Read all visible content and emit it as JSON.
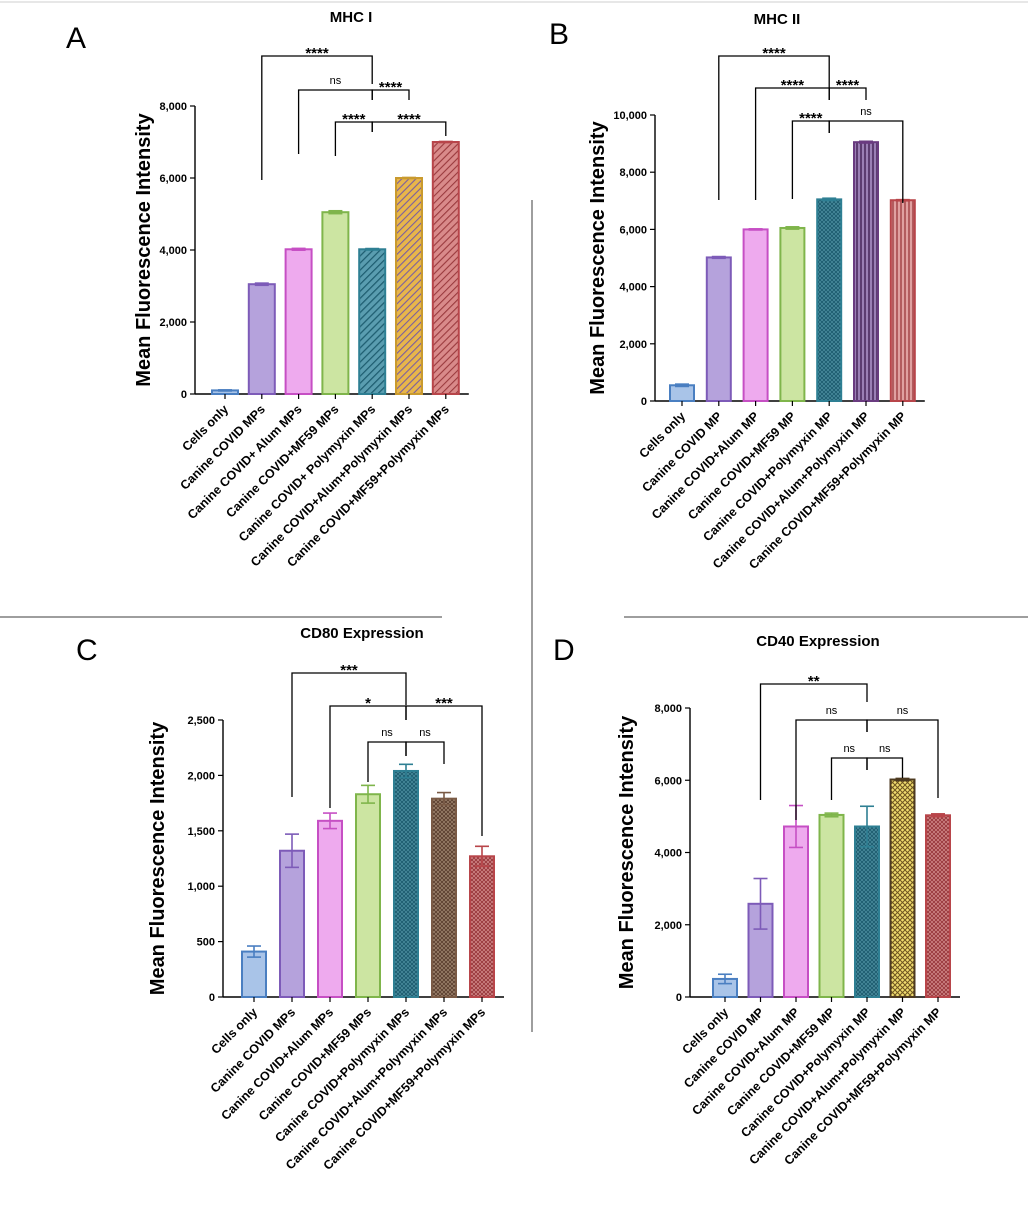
{
  "figure": {
    "dividers": {
      "color": "#9e9e9e"
    }
  },
  "chart_data": [
    {
      "panel": "A",
      "type": "bar",
      "title": "MHC I",
      "ylabel": "Mean Fluorescence Intensity",
      "ylim": [
        0,
        8000
      ],
      "yticks": [
        0,
        2000,
        4000,
        6000,
        8000
      ],
      "ytick_labels": [
        "0",
        "2,000",
        "4,000",
        "6,000",
        "8,000"
      ],
      "categories": [
        "Cells only",
        "Canine COVID MPs",
        "Canine COVID+ Alum MPs",
        "Canine COVID+MF59 MPs",
        "Canine COVID+ Polymyxin MPs",
        "Canine COVID+Alum+Polymyxin MPs",
        "Canine COVID+MF59+Polymyxin MPs"
      ],
      "values": [
        100,
        3050,
        4020,
        5050,
        4020,
        6000,
        7000
      ],
      "errors": [
        15,
        30,
        25,
        40,
        20,
        15,
        15
      ],
      "colors": [
        "#4a7fc1",
        "#7d5bb8",
        "#c64fc4",
        "#7fb54b",
        "#2e7f93",
        "#c99a2e",
        "#b8454a"
      ],
      "fills": [
        "#a9c4e8",
        "#b5a2dc",
        "#eeaaee",
        "#cce5a2",
        "#2e7f93",
        "#c99a2e",
        "#b8454a"
      ],
      "patterns": [
        "solid",
        "solid",
        "solid",
        "solid",
        "diag-blue",
        "diag-gold",
        "diag-red"
      ],
      "comparisons": [
        {
          "from": 1,
          "to": 4,
          "label": "****"
        },
        {
          "from": 2,
          "to": 4,
          "label": "ns"
        },
        {
          "from": 4,
          "to": 5,
          "label": "****"
        },
        {
          "from": 3,
          "to": 4,
          "label": "****"
        },
        {
          "from": 4,
          "to": 6,
          "label": "****"
        }
      ]
    },
    {
      "panel": "B",
      "type": "bar",
      "title": "MHC II",
      "ylabel": "Mean Fluorescence Intensity",
      "ylim": [
        0,
        10000
      ],
      "yticks": [
        0,
        2000,
        4000,
        6000,
        8000,
        10000
      ],
      "ytick_labels": [
        "0",
        "2,000",
        "4,000",
        "6,000",
        "8,000",
        "10,000"
      ],
      "categories": [
        "Cells only",
        "Canine COVID MP",
        "Canine COVID+Alum MP",
        "Canine COVID+MF59 MP",
        "Canine COVID+Polymyxin MP",
        "Canine COVID+Alum+Polymyxin MP",
        "Canine COVID+MF59+Polymyxin MP"
      ],
      "values": [
        550,
        5020,
        6000,
        6050,
        7050,
        9050,
        7020
      ],
      "errors": [
        40,
        30,
        20,
        40,
        40,
        30,
        20
      ],
      "colors": [
        "#4a7fc1",
        "#7d5bb8",
        "#c64fc4",
        "#7fb54b",
        "#2e7f93",
        "#6a3b80",
        "#b8454a"
      ],
      "fills": [
        "#a9c4e8",
        "#b5a2dc",
        "#eeaaee",
        "#cce5a2",
        "#2e7f93",
        "#6a3b80",
        "#b8454a"
      ],
      "patterns": [
        "solid",
        "solid",
        "solid",
        "solid",
        "cross-blue",
        "vert-purple",
        "vert-red"
      ],
      "comparisons": [
        {
          "from": 1,
          "to": 4,
          "label": "****"
        },
        {
          "from": 2,
          "to": 4,
          "label": "****"
        },
        {
          "from": 4,
          "to": 5,
          "label": "****"
        },
        {
          "from": 3,
          "to": 4,
          "label": "****"
        },
        {
          "from": 4,
          "to": 6,
          "label": "ns"
        }
      ]
    },
    {
      "panel": "C",
      "type": "bar",
      "title": "CD80 Expression",
      "ylabel": "Mean Fluorescence Intensity",
      "ylim": [
        0,
        2500
      ],
      "yticks": [
        0,
        500,
        1000,
        1500,
        2000,
        2500
      ],
      "ytick_labels": [
        "0",
        "500",
        "1,000",
        "1,500",
        "2,000",
        "2,500"
      ],
      "categories": [
        "Cells only",
        "Canine COVID MPs",
        "Canine COVID+Alum MPs",
        "Canine COVID+MF59 MPs",
        "Canine COVID+Polymyxin MPs",
        "Canine COVID+Alum+Polymyxin MPs",
        "Canine COVID+MF59+Polymyxin MPs"
      ],
      "values": [
        410,
        1320,
        1590,
        1830,
        2040,
        1790,
        1270
      ],
      "errors": [
        50,
        150,
        70,
        80,
        60,
        55,
        90
      ],
      "colors": [
        "#4a7fc1",
        "#7d5bb8",
        "#c64fc4",
        "#7fb54b",
        "#2e7f93",
        "#7a5a45",
        "#b8454a"
      ],
      "fills": [
        "#a9c4e8",
        "#b5a2dc",
        "#eeaaee",
        "#cce5a2",
        "#2e7f93",
        "#7a5a45",
        "#b8454a"
      ],
      "patterns": [
        "solid",
        "solid",
        "solid",
        "solid",
        "cross-blue",
        "cross-brown",
        "cross-red"
      ],
      "comparisons": [
        {
          "from": 1,
          "to": 4,
          "label": "***"
        },
        {
          "from": 2,
          "to": 4,
          "label": "*"
        },
        {
          "from": 4,
          "to": 6,
          "label": "***"
        },
        {
          "from": 3,
          "to": 4,
          "label": "ns"
        },
        {
          "from": 4,
          "to": 5,
          "label": "ns"
        }
      ]
    },
    {
      "panel": "D",
      "type": "bar",
      "title": "CD40 Expression",
      "ylabel": "Mean Fluorescence Intensity",
      "ylim": [
        0,
        8000
      ],
      "yticks": [
        0,
        2000,
        4000,
        6000,
        8000
      ],
      "ytick_labels": [
        "0",
        "2,000",
        "4,000",
        "6,000",
        "8,000"
      ],
      "categories": [
        "Cells only",
        "Canine COVID MP",
        "Canine COVID+Alum MP",
        "Canine COVID+MF59 MP",
        "Canine COVID+Polymyxin MP",
        "Canine COVID+Alum+Polymyxin MP",
        "Canine COVID+MF59+Polymyxin MP"
      ],
      "values": [
        500,
        2580,
        4720,
        5040,
        4720,
        6020,
        5030
      ],
      "errors": [
        130,
        700,
        580,
        50,
        560,
        30,
        40
      ],
      "colors": [
        "#4a7fc1",
        "#7d5bb8",
        "#c64fc4",
        "#7fb54b",
        "#2e7f93",
        "#4d3a20",
        "#b8454a"
      ],
      "fills": [
        "#a9c4e8",
        "#b5a2dc",
        "#eeaaee",
        "#cce5a2",
        "#2e7f93",
        "#e0c95a",
        "#b8454a"
      ],
      "patterns": [
        "solid",
        "solid",
        "solid",
        "solid",
        "cross-blue",
        "check-gold",
        "cross-red"
      ],
      "comparisons": [
        {
          "from": 1,
          "to": 4,
          "label": "**"
        },
        {
          "from": 2,
          "to": 4,
          "label": "ns"
        },
        {
          "from": 4,
          "to": 6,
          "label": "ns"
        },
        {
          "from": 3,
          "to": 4,
          "label": "ns"
        },
        {
          "from": 4,
          "to": 5,
          "label": "ns"
        }
      ]
    }
  ]
}
